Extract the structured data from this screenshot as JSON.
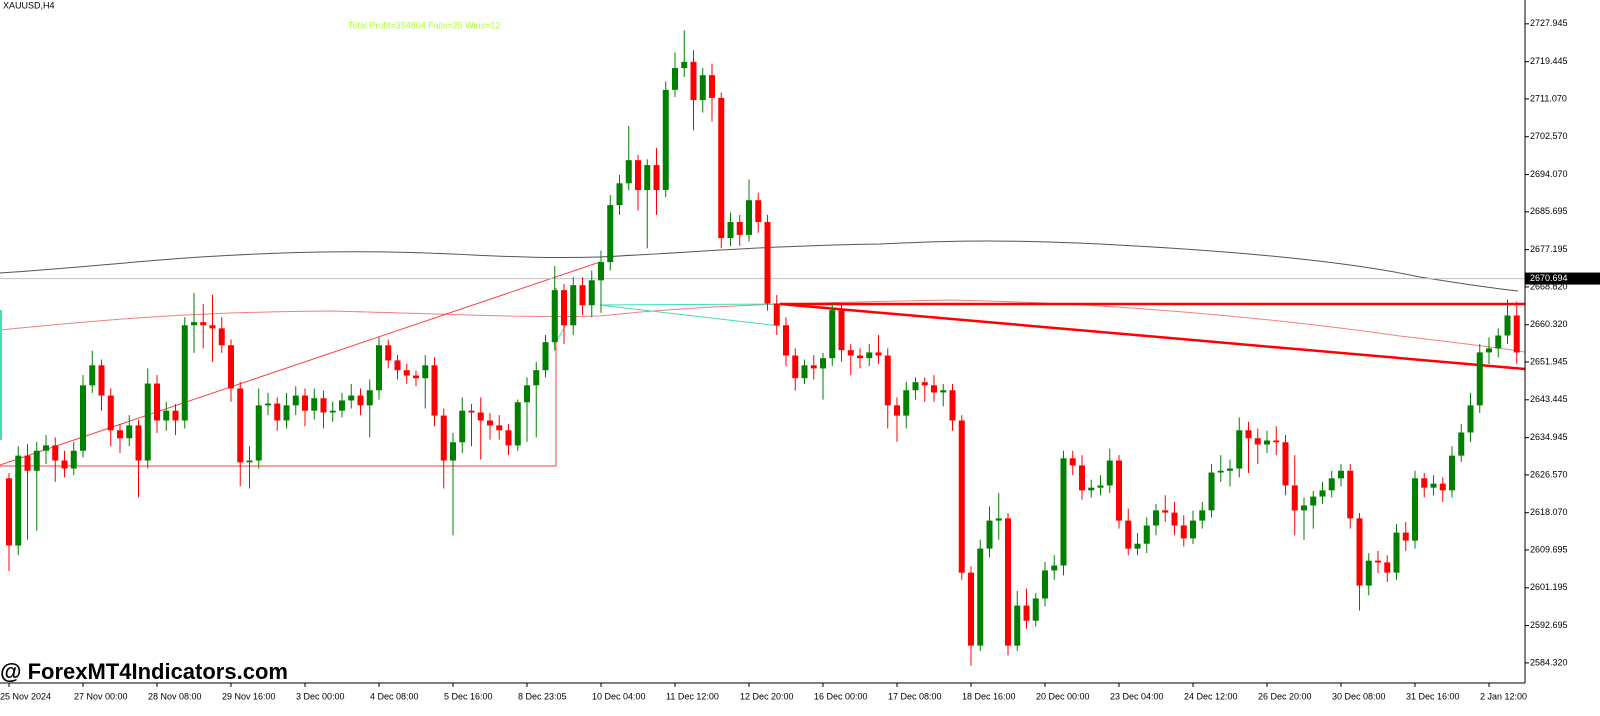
{
  "chart_data": {
    "type": "candlestick",
    "title": "XAUUSD,H4",
    "annotation": "Total Profit=354804 Fails=25 Wins=12",
    "watermark": "@ ForexMT4Indicators.com",
    "up_color": "#008000",
    "down_color": "#ff0000",
    "ylim": [
      2579.8,
      2733.3
    ],
    "yticks": [
      2727.945,
      2719.445,
      {
        "value": 2711.07,
        "label": "2711.070"
      },
      {
        "value": 2702.57,
        "label": "2702.570"
      },
      {
        "value": 2694.07,
        "label": "2694.070"
      },
      2685.695,
      2677.195,
      {
        "value": 2668.82,
        "label": "2668.820"
      },
      {
        "value": 2660.32,
        "label": "2660.320"
      },
      2651.945,
      2643.445,
      2634.945,
      {
        "value": 2626.57,
        "label": "2626.570"
      },
      {
        "value": 2618.07,
        "label": "2618.070"
      },
      2609.695,
      2601.195,
      2592.695,
      {
        "value": 2584.32,
        "label": "2584.320"
      }
    ],
    "current_price": 2670.694,
    "categories": [
      "25 Nov 2024",
      null,
      null,
      null,
      null,
      null,
      null,
      null,
      "27 Nov 00:00",
      null,
      null,
      null,
      null,
      null,
      null,
      null,
      "28 Nov 08:00",
      null,
      null,
      null,
      null,
      null,
      null,
      null,
      "29 Nov 16:00",
      null,
      null,
      null,
      null,
      null,
      null,
      null,
      "3 Dec 00:00",
      null,
      null,
      null,
      null,
      null,
      null,
      null,
      "4 Dec 08:00",
      null,
      null,
      null,
      null,
      null,
      null,
      null,
      "5 Dec 16:00",
      null,
      null,
      null,
      null,
      null,
      null,
      null,
      "8 Dec 23:05",
      null,
      null,
      null,
      null,
      null,
      null,
      null,
      "10 Dec 04:00",
      null,
      null,
      null,
      null,
      null,
      null,
      null,
      "11 Dec 12:00",
      null,
      null,
      null,
      null,
      null,
      null,
      null,
      "12 Dec 20:00",
      null,
      null,
      null,
      null,
      null,
      null,
      null,
      "16 Dec 00:00",
      null,
      null,
      null,
      null,
      null,
      null,
      null,
      "17 Dec 08:00",
      null,
      null,
      null,
      null,
      null,
      null,
      null,
      "18 Dec 16:00",
      null,
      null,
      null,
      null,
      null,
      null,
      null,
      "20 Dec 00:00",
      null,
      null,
      null,
      null,
      null,
      null,
      null,
      "23 Dec 04:00",
      null,
      null,
      null,
      null,
      null,
      null,
      null,
      "24 Dec 12:00",
      null,
      null,
      null,
      null,
      null,
      null,
      null,
      "26 Dec 20:00",
      null,
      null,
      null,
      null,
      null,
      null,
      null,
      "30 Dec 08:00",
      null,
      null,
      null,
      null,
      null,
      null,
      null,
      "31 Dec 16:00",
      null,
      null,
      null,
      null,
      null,
      null,
      null,
      "2 Jan 12:00",
      null,
      null,
      null
    ],
    "open": [
      2625.8,
      2610.7,
      2630.9,
      2627.5,
      2632.0,
      2633.2,
      2629.8,
      2628.0,
      2632.0,
      2646.7,
      2651.2,
      2644.4,
      2636.6,
      2634.8,
      2637.7,
      2629.8,
      2647.1,
      2638.8,
      2641.0,
      2638.8,
      2660.2,
      2660.9,
      2660.2,
      2659.5,
      2655.7,
      2646.0,
      2629.4,
      2629.8,
      2642.2,
      2642.6,
      2638.8,
      2642.2,
      2644.4,
      2641.0,
      2643.8,
      2640.6,
      2641.0,
      2643.3,
      2644.4,
      2642.2,
      2645.6,
      2655.7,
      2652.3,
      2650.1,
      2648.9,
      2648.3,
      2651.2,
      2639.9,
      2629.8,
      2633.9,
      2641.0,
      2640.6,
      2638.8,
      2637.7,
      2636.6,
      2633.2,
      2642.9,
      2646.7,
      2650.1,
      2656.4,
      2668.1,
      2660.2,
      2669.2,
      2664.7,
      2670.3,
      2674.4,
      2687.2,
      2692.1,
      2697.3,
      2690.6,
      2696.2,
      2690.6,
      2713.1,
      2718.0,
      2719.4,
      2710.8,
      2716.4,
      2711.3,
      2679.8,
      2683.4,
      2680.5,
      2688.3,
      2683.4,
      2665.1,
      2660.2,
      2653.4,
      2648.3,
      2651.2,
      2650.5,
      2652.8,
      2663.6,
      2654.6,
      2653.4,
      2652.8,
      2654.1,
      2653.4,
      2642.2,
      2639.9,
      2645.6,
      2647.4,
      2646.7,
      2645.1,
      2645.6,
      2638.8,
      2604.6,
      2588.2,
      2610.0,
      2616.3,
      2616.8,
      2588.2,
      2597.2,
      2593.8,
      2598.8,
      2605.1,
      2606.2,
      2630.3,
      2628.7,
      2623.1,
      2623.7,
      2624.2,
      2629.8,
      2616.3,
      2610.0,
      2611.1,
      2615.2,
      2618.6,
      2618.1,
      2615.2,
      2612.3,
      2616.3,
      2618.6,
      2627.1,
      2627.5,
      2628.0,
      2636.6,
      2634.8,
      2633.4,
      2634.3,
      2633.9,
      2624.2,
      2618.6,
      2619.7,
      2621.7,
      2623.1,
      2625.8,
      2627.5,
      2616.8,
      2601.7,
      2607.3,
      2606.9,
      2604.6,
      2613.6,
      2611.8,
      2625.8,
      2623.7,
      2624.6,
      2623.1,
      2630.9,
      2636.1,
      2642.2,
      2654.1,
      2655.0,
      2657.9,
      2662.4
    ],
    "high": [
      2627.0,
      2633.0,
      2633.5,
      2634.0,
      2635.5,
      2635.0,
      2632.0,
      2634.0,
      2649.0,
      2654.5,
      2652.5,
      2646.0,
      2638.0,
      2640.0,
      2639.0,
      2650.5,
      2649.0,
      2643.0,
      2642.5,
      2662.0,
      2667.5,
      2665.0,
      2667.0,
      2662.0,
      2657.0,
      2647.5,
      2633.0,
      2646.0,
      2645.0,
      2644.0,
      2645.0,
      2646.5,
      2646.0,
      2646.0,
      2645.5,
      2643.0,
      2645.0,
      2647.0,
      2646.0,
      2648.0,
      2657.5,
      2657.0,
      2653.5,
      2651.5,
      2650.0,
      2653.5,
      2653.0,
      2641.5,
      2636.0,
      2644.0,
      2642.5,
      2644.0,
      2640.5,
      2640.0,
      2638.0,
      2643.5,
      2648.5,
      2652.0,
      2658.0,
      2673.5,
      2669.5,
      2671.0,
      2671.0,
      2672.5,
      2677.0,
      2689.5,
      2694.0,
      2705.0,
      2698.5,
      2697.5,
      2700.0,
      2715.0,
      2721.5,
      2726.5,
      2722.0,
      2718.0,
      2719.0,
      2712.5,
      2685.5,
      2685.0,
      2693.0,
      2690.0,
      2685.0,
      2667.0,
      2662.0,
      2655.0,
      2652.5,
      2653.5,
      2654.0,
      2665.0,
      2665.0,
      2656.0,
      2655.0,
      2656.0,
      2658.0,
      2655.0,
      2644.0,
      2647.5,
      2648.5,
      2648.5,
      2649.0,
      2647.0,
      2647.0,
      2640.0,
      2606.0,
      2612.0,
      2619.5,
      2622.5,
      2618.0,
      2600.5,
      2601.0,
      2600.0,
      2607.0,
      2608.5,
      2632.0,
      2632.0,
      2631.0,
      2625.5,
      2626.5,
      2632.5,
      2631.0,
      2619.0,
      2613.5,
      2617.0,
      2620.0,
      2622.0,
      2620.5,
      2617.5,
      2618.5,
      2620.5,
      2629.0,
      2631.0,
      2630.0,
      2639.5,
      2638.5,
      2637.0,
      2636.5,
      2637.5,
      2635.5,
      2631.0,
      2621.5,
      2623.0,
      2625.0,
      2627.5,
      2629.0,
      2629.0,
      2618.0,
      2609.0,
      2609.5,
      2608.5,
      2615.5,
      2616.0,
      2627.5,
      2627.0,
      2626.5,
      2626.0,
      2633.0,
      2638.0,
      2645.0,
      2656.0,
      2657.5,
      2659.5,
      2666.0,
      2665.5
    ],
    "low": [
      2605.0,
      2608.5,
      2612.0,
      2614.0,
      2629.0,
      2625.0,
      2626.0,
      2626.5,
      2630.5,
      2645.0,
      2641.0,
      2633.0,
      2631.5,
      2633.0,
      2621.5,
      2628.0,
      2636.0,
      2636.5,
      2635.5,
      2637.0,
      2654.0,
      2655.0,
      2652.0,
      2654.0,
      2643.0,
      2624.0,
      2623.5,
      2628.0,
      2640.0,
      2636.5,
      2637.0,
      2640.0,
      2637.5,
      2639.0,
      2637.0,
      2638.5,
      2639.5,
      2641.5,
      2640.0,
      2635.0,
      2643.5,
      2650.5,
      2648.0,
      2647.0,
      2646.5,
      2641.5,
      2637.5,
      2623.5,
      2613.0,
      2631.5,
      2633.0,
      2630.0,
      2634.5,
      2634.5,
      2631.0,
      2632.0,
      2634.0,
      2635.0,
      2648.5,
      2654.5,
      2656.0,
      2658.0,
      2662.5,
      2662.0,
      2663.0,
      2672.5,
      2685.0,
      2690.5,
      2686.0,
      2677.5,
      2685.0,
      2689.0,
      2711.5,
      2716.0,
      2704.0,
      2708.0,
      2706.0,
      2677.5,
      2678.0,
      2678.0,
      2679.0,
      2681.0,
      2663.5,
      2658.0,
      2651.0,
      2645.5,
      2647.0,
      2648.0,
      2643.5,
      2651.0,
      2652.0,
      2649.0,
      2650.5,
      2651.0,
      2651.5,
      2637.0,
      2634.0,
      2637.0,
      2643.5,
      2643.0,
      2643.0,
      2642.0,
      2636.5,
      2603.0,
      2583.7,
      2587.0,
      2608.0,
      2612.0,
      2586.0,
      2587.0,
      2592.0,
      2592.5,
      2597.0,
      2603.0,
      2604.0,
      2626.5,
      2621.0,
      2621.5,
      2622.0,
      2622.5,
      2614.5,
      2608.5,
      2608.5,
      2609.0,
      2613.0,
      2616.0,
      2613.0,
      2610.5,
      2611.0,
      2614.5,
      2617.0,
      2625.0,
      2624.0,
      2626.0,
      2627.0,
      2629.0,
      2631.5,
      2631.0,
      2622.0,
      2613.0,
      2612.0,
      2614.5,
      2620.0,
      2621.5,
      2624.0,
      2614.5,
      2596.1,
      2599.5,
      2604.5,
      2602.5,
      2603.0,
      2609.5,
      2610.0,
      2621.5,
      2622.0,
      2620.5,
      2621.5,
      2629.5,
      2634.0,
      2640.5,
      2651.5,
      2653.0,
      2656.0,
      2651.5
    ],
    "close": [
      2610.7,
      2630.9,
      2627.5,
      2632.0,
      2633.2,
      2629.8,
      2628.0,
      2632.0,
      2646.7,
      2651.2,
      2644.4,
      2636.6,
      2634.8,
      2637.7,
      2629.8,
      2647.1,
      2638.8,
      2641.0,
      2638.8,
      2660.2,
      2660.9,
      2660.2,
      2659.5,
      2655.7,
      2646.0,
      2629.4,
      2629.8,
      2642.2,
      2642.6,
      2638.8,
      2642.2,
      2644.4,
      2641.0,
      2643.8,
      2640.6,
      2641.0,
      2643.3,
      2644.4,
      2642.2,
      2645.6,
      2655.7,
      2652.3,
      2650.1,
      2648.9,
      2648.3,
      2651.2,
      2639.9,
      2629.8,
      2633.9,
      2641.0,
      2640.6,
      2638.8,
      2637.7,
      2636.6,
      2633.2,
      2642.9,
      2646.7,
      2650.1,
      2656.4,
      2668.1,
      2660.2,
      2669.2,
      2664.7,
      2670.3,
      2674.4,
      2687.2,
      2692.1,
      2697.3,
      2690.6,
      2696.2,
      2690.6,
      2713.1,
      2718.0,
      2719.4,
      2710.8,
      2716.4,
      2711.3,
      2679.8,
      2683.4,
      2680.5,
      2688.3,
      2683.4,
      2665.1,
      2660.2,
      2653.4,
      2648.3,
      2651.2,
      2650.5,
      2652.8,
      2663.6,
      2654.6,
      2653.4,
      2652.8,
      2654.1,
      2653.4,
      2642.2,
      2639.9,
      2645.6,
      2647.4,
      2646.7,
      2645.1,
      2645.6,
      2638.8,
      2604.6,
      2588.2,
      2610.0,
      2616.3,
      2616.8,
      2588.2,
      2597.2,
      2593.8,
      2598.8,
      2605.1,
      2606.2,
      2630.3,
      2628.7,
      2623.1,
      2623.7,
      2624.2,
      2629.8,
      2616.3,
      2610.0,
      2611.1,
      2615.2,
      2618.6,
      2618.1,
      2615.2,
      2612.3,
      2616.3,
      2618.6,
      2627.1,
      2627.5,
      2628.0,
      2636.6,
      2634.8,
      2633.4,
      2634.3,
      2633.9,
      2624.2,
      2618.6,
      2619.7,
      2621.7,
      2623.1,
      2625.8,
      2627.5,
      2616.8,
      2601.7,
      2607.3,
      2606.9,
      2604.6,
      2613.6,
      2611.8,
      2625.8,
      2623.7,
      2624.6,
      2623.1,
      2630.9,
      2636.1,
      2642.2,
      2654.1,
      2655.0,
      2657.9,
      2662.4,
      2654.1
    ]
  }
}
